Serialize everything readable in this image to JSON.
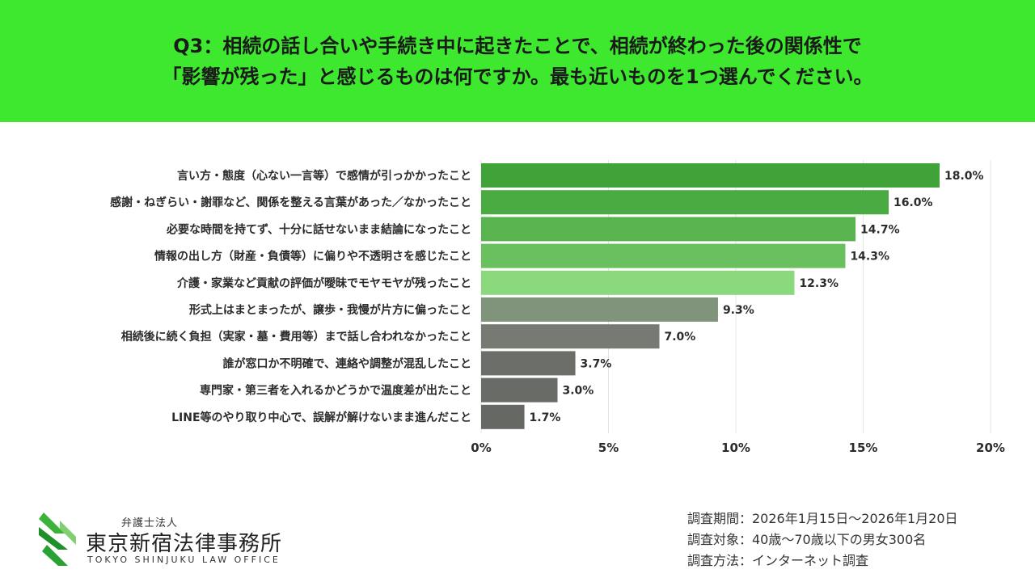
{
  "header": {
    "line1": "Q3：相続の話し合いや手続き中に起きたことで、相続が終わった後の関係性で",
    "line2": "「影響が残った」と感じるものは何ですか。最も近いものを1つ選んでください。"
  },
  "chart_data": {
    "type": "bar",
    "orientation": "horizontal",
    "categories": [
      "言い方・態度（心ない一言等）で感情が引っかかったこと",
      "感謝・ねぎらい・謝罪など、関係を整える言葉があった／なかったこと",
      "必要な時間を持てず、十分に話せないまま結論になったこと",
      "情報の出し方（財産・負債等）に偏りや不透明さを感じたこと",
      "介護・家業など貢献の評価が曖昧でモヤモヤが残ったこと",
      "形式上はまとまったが、譲歩・我慢が片方に偏ったこと",
      "相続後に続く負担（実家・墓・費用等）まで話し合われなかったこと",
      "誰が窓口か不明確で、連絡や調整が混乱したこと",
      "専門家・第三者を入れるかどうかで温度差が出たこと",
      "LINE等のやり取り中心で、誤解が解けないまま進んだこと"
    ],
    "values": [
      18.0,
      16.0,
      14.7,
      14.3,
      12.3,
      9.3,
      7.0,
      3.7,
      3.0,
      1.7
    ],
    "value_labels": [
      "18.0%",
      "16.0%",
      "14.7%",
      "14.3%",
      "12.3%",
      "9.3%",
      "7.0%",
      "3.7%",
      "3.0%",
      "1.7%"
    ],
    "colors": [
      "#3fa33a",
      "#4aab42",
      "#59b44f",
      "#6abf5e",
      "#8ad97d",
      "#7f947a",
      "#767a73",
      "#6b6e69",
      "#686b66",
      "#666864"
    ],
    "xlim": [
      0,
      20
    ],
    "xticks": [
      0,
      5,
      10,
      15,
      20
    ],
    "xtick_labels": [
      "0%",
      "5%",
      "10%",
      "15%",
      "20%"
    ],
    "grid": true
  },
  "logo": {
    "small": "弁護士法人",
    "name": "東京新宿法律事務所",
    "en": "TOKYO SHINJUKU LAW OFFICE"
  },
  "survey": {
    "period": "調査期間：2026年1月15日〜2026年1月20日",
    "target": "調査対象：40歳〜70歳以下の男女300名",
    "method": "調査方法：インターネット調査"
  }
}
